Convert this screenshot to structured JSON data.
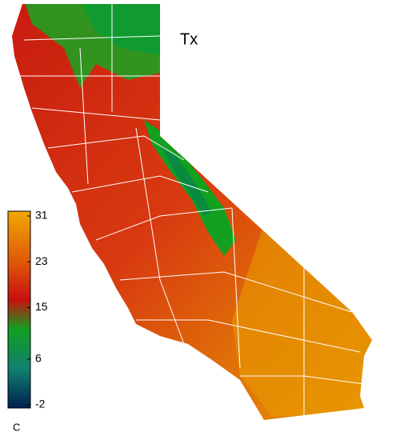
{
  "title": "Tx",
  "colorbar": {
    "label": "C",
    "range": [
      -2,
      31
    ],
    "ticks": [
      31,
      23,
      15,
      6,
      -2
    ]
  }
}
